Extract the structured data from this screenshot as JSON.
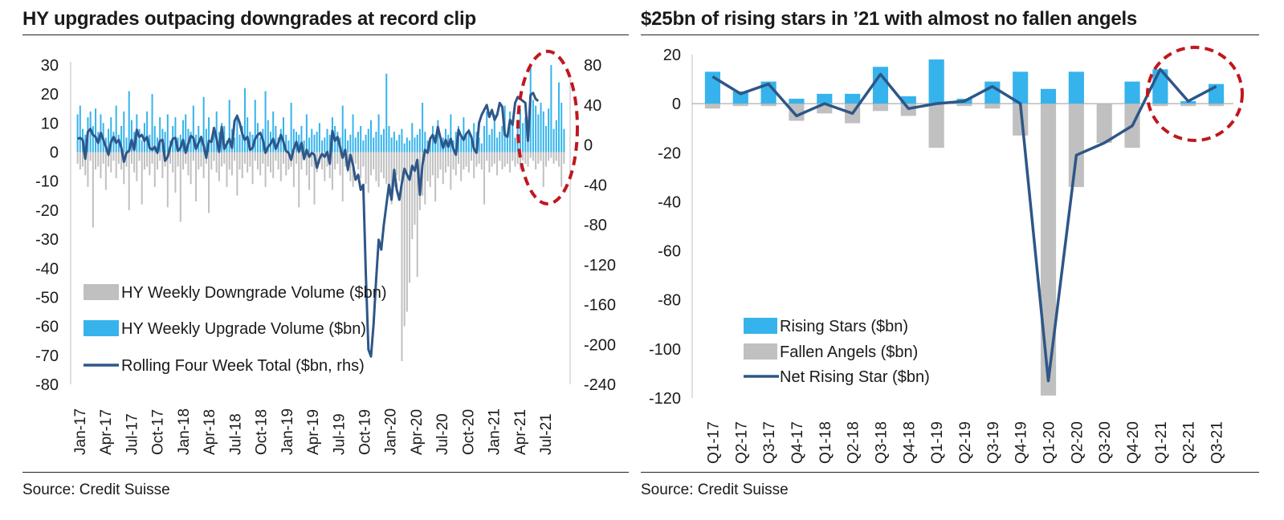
{
  "left": {
    "title": "HY upgrades outpacing downgrades at record clip",
    "source": "Source: Credit Suisse"
  },
  "right": {
    "title": "$25bn of rising stars in ’21 with almost no fallen angels",
    "source": "Source: Credit Suisse"
  },
  "colors": {
    "upgrade": "#36b3ec",
    "downgrade": "#c0c0c0",
    "line": "#2e5688",
    "highlight": "#c0171e",
    "axis": "#bfbfbf"
  },
  "chart_data": [
    {
      "type": "bar",
      "x_tick_labels": [
        "Jan-17",
        "Apr-17",
        "Jul-17",
        "Oct-17",
        "Jan-18",
        "Apr-18",
        "Jul-18",
        "Oct-18",
        "Jan-19",
        "Apr-19",
        "Jul-19",
        "Oct-19",
        "Jan-20",
        "Apr-20",
        "Jul-20",
        "Oct-20",
        "Jan-21",
        "Apr-21",
        "Jul-21"
      ],
      "y_left": {
        "min": -80,
        "max": 30,
        "step": 10
      },
      "y_right": {
        "min": -240,
        "max": 80,
        "step": 40
      },
      "legend": [
        {
          "label": "HY Weekly Downgrade Volume ($bn)",
          "kind": "bar",
          "color": "#c0c0c0"
        },
        {
          "label": "HY Weekly Upgrade Volume ($bn)",
          "kind": "bar",
          "color": "#36b3ec"
        },
        {
          "label": "Rolling Four Week Total ($bn, rhs)",
          "kind": "line",
          "color": "#2e5688"
        }
      ],
      "highlight": "dashed ellipse around Apr-21 to Jul-21",
      "series": [
        {
          "name": "HY Weekly Upgrade Volume ($bn)",
          "values": [
            13,
            16,
            8,
            6,
            12,
            14,
            9,
            15,
            7,
            13,
            10,
            5,
            8,
            12,
            7,
            16,
            6,
            9,
            14,
            5,
            21,
            11,
            7,
            13,
            8,
            4,
            10,
            14,
            6,
            20,
            9,
            5,
            12,
            8,
            7,
            13,
            4,
            9,
            12,
            5,
            6,
            11,
            13,
            8,
            7,
            16,
            6,
            9,
            4,
            19,
            8,
            12,
            5,
            6,
            14,
            7,
            10,
            9,
            4,
            18,
            8,
            5,
            13,
            6,
            9,
            22,
            12,
            7,
            6,
            18,
            10,
            5,
            8,
            21,
            11,
            7,
            14,
            9,
            5,
            8,
            12,
            6,
            4,
            17,
            8,
            7,
            6,
            9,
            4,
            13,
            5,
            8,
            6,
            7,
            10,
            4,
            5,
            8,
            6,
            12,
            9,
            7,
            5,
            16,
            8,
            4,
            6,
            13,
            5,
            7,
            9,
            4,
            6,
            8,
            11,
            5,
            7,
            13,
            6,
            8,
            27,
            9,
            5,
            7,
            4,
            6,
            8,
            3,
            5,
            4,
            10,
            5,
            6,
            8,
            17,
            7,
            4,
            5,
            9,
            6,
            11,
            4,
            5,
            8,
            6,
            13,
            4,
            7,
            9,
            5,
            12,
            6,
            8,
            4,
            10,
            7,
            5,
            3,
            9,
            14,
            6,
            8,
            13,
            5,
            7,
            9,
            16,
            6,
            14,
            11,
            5,
            8,
            15,
            10,
            12,
            7,
            30,
            18,
            16,
            13,
            17,
            14,
            9,
            15,
            30,
            8,
            11,
            24,
            17,
            8
          ]
        },
        {
          "name": "HY Weekly Downgrade Volume ($bn)",
          "values": [
            -4,
            -6,
            -5,
            -8,
            -12,
            -3,
            -26,
            -6,
            -5,
            -9,
            -4,
            -13,
            -5,
            -7,
            -3,
            -9,
            -4,
            -6,
            -11,
            -5,
            -20,
            -4,
            -7,
            -10,
            -3,
            -18,
            -6,
            -5,
            -8,
            -4,
            -12,
            -6,
            -3,
            -9,
            -5,
            -19,
            -4,
            -7,
            -14,
            -5,
            -24,
            -6,
            -4,
            -8,
            -11,
            -3,
            -17,
            -6,
            -5,
            -9,
            -4,
            -21,
            -6,
            -3,
            -7,
            -10,
            -5,
            -4,
            -12,
            -6,
            -8,
            -3,
            -15,
            -6,
            -9,
            -4,
            -7,
            -5,
            -11,
            -3,
            -6,
            -8,
            -4,
            -12,
            -5,
            -7,
            -9,
            -3,
            -6,
            -10,
            -4,
            -8,
            -6,
            -5,
            -12,
            -4,
            -19,
            -6,
            -3,
            -8,
            -13,
            -5,
            -18,
            -7,
            -4,
            -6,
            -10,
            -5,
            -9,
            -13,
            -6,
            -4,
            -8,
            -17,
            -5,
            -7,
            -10,
            -12,
            -4,
            -6,
            -9,
            -5,
            -11,
            -14,
            -8,
            -6,
            -10,
            -12,
            -7,
            -9,
            -11,
            -15,
            -18,
            -12,
            -8,
            -10,
            -72,
            -60,
            -55,
            -45,
            -30,
            -25,
            -43,
            -20,
            -15,
            -18,
            -10,
            -12,
            -8,
            -17,
            -9,
            -6,
            -11,
            -7,
            -5,
            -13,
            -6,
            -8,
            -4,
            -10,
            -6,
            -5,
            -7,
            -3,
            -9,
            -5,
            -4,
            -6,
            -18,
            -3,
            -7,
            -5,
            -4,
            -8,
            -3,
            -6,
            -5,
            -4,
            -7,
            -3,
            -5,
            -4,
            -6,
            -3,
            -4,
            -5,
            -2,
            -3,
            -6,
            -4,
            -3,
            -12,
            -5,
            -3,
            -2,
            -4,
            -3,
            -5,
            -12,
            -4
          ]
        },
        {
          "name": "Rolling Four Week Total ($bn, rhs)",
          "values": [
            6,
            7,
            5,
            -14,
            13,
            16,
            10,
            8,
            2,
            12,
            5,
            -2,
            -10,
            3,
            8,
            2,
            5,
            -3,
            -17,
            -8,
            -6,
            5,
            -5,
            15,
            8,
            10,
            4,
            8,
            -3,
            -5,
            -2,
            -8,
            4,
            5,
            -16,
            -12,
            -2,
            6,
            7,
            -6,
            -3,
            5,
            -8,
            1,
            9,
            7,
            -4,
            2,
            8,
            -1,
            -13,
            4,
            3,
            17,
            6,
            -7,
            18,
            -4,
            1,
            6,
            -3,
            24,
            29,
            22,
            11,
            5,
            8,
            -5,
            -3,
            6,
            10,
            12,
            5,
            -8,
            -2,
            1,
            6,
            -4,
            2,
            10,
            3,
            -6,
            -8,
            -15,
            -4,
            3,
            -7,
            2,
            -14,
            -5,
            -12,
            -8,
            -10,
            -23,
            -14,
            -9,
            -12,
            -7,
            -19,
            14,
            4,
            8,
            -2,
            -13,
            -5,
            -25,
            -10,
            -20,
            -35,
            -30,
            -45,
            -40,
            -130,
            -205,
            -212,
            -180,
            -135,
            -95,
            -105,
            -80,
            -60,
            -40,
            -55,
            -25,
            -45,
            -55,
            -38,
            -24,
            -30,
            -35,
            -21,
            -26,
            -15,
            -50,
            -20,
            -5,
            -8,
            6,
            10,
            2,
            18,
            7,
            -3,
            5,
            -2,
            6,
            -4,
            -10,
            15,
            9,
            5,
            11,
            14,
            8,
            -4,
            -8,
            22,
            30,
            35,
            40,
            28,
            35,
            25,
            30,
            42,
            38,
            10,
            8,
            25,
            20,
            42,
            48,
            46,
            44,
            42,
            4,
            50,
            52,
            46,
            44
          ]
        }
      ]
    },
    {
      "type": "bar",
      "categories": [
        "Q1-17",
        "Q2-17",
        "Q3-17",
        "Q4-17",
        "Q1-18",
        "Q2-18",
        "Q3-18",
        "Q4-18",
        "Q1-19",
        "Q2-19",
        "Q3-19",
        "Q4-19",
        "Q1-20",
        "Q2-20",
        "Q3-20",
        "Q4-20",
        "Q1-21",
        "Q2-21",
        "Q3-21"
      ],
      "ylim": [
        -120,
        20
      ],
      "y_step": 20,
      "legend": [
        {
          "label": "Rising Stars ($bn)",
          "kind": "bar",
          "color": "#36b3ec"
        },
        {
          "label": "Fallen Angels ($bn)",
          "kind": "bar",
          "color": "#c0c0c0"
        },
        {
          "label": "Net Rising Star ($bn)",
          "kind": "line",
          "color": "#2e5688"
        }
      ],
      "highlight": "dashed ellipse around Q1-21 to Q3-21",
      "series": [
        {
          "name": "Rising Stars ($bn)",
          "values": [
            13,
            5,
            9,
            2,
            4,
            4,
            15,
            3,
            18,
            2,
            9,
            13,
            6,
            13,
            0,
            9,
            14,
            1,
            8
          ]
        },
        {
          "name": "Fallen Angels ($bn)",
          "values": [
            -2,
            -1,
            -1,
            -7,
            -4,
            -8,
            -3,
            -5,
            -18,
            -1,
            -2,
            -13,
            -119,
            -34,
            -16,
            -18,
            -1,
            -1,
            -1
          ]
        },
        {
          "name": "Net Rising Star ($bn)",
          "values": [
            11,
            4,
            8,
            -5,
            0,
            -4,
            12,
            -2,
            0,
            1,
            7,
            0,
            -113,
            -21,
            -16,
            -9,
            14,
            1,
            7
          ]
        }
      ]
    }
  ]
}
